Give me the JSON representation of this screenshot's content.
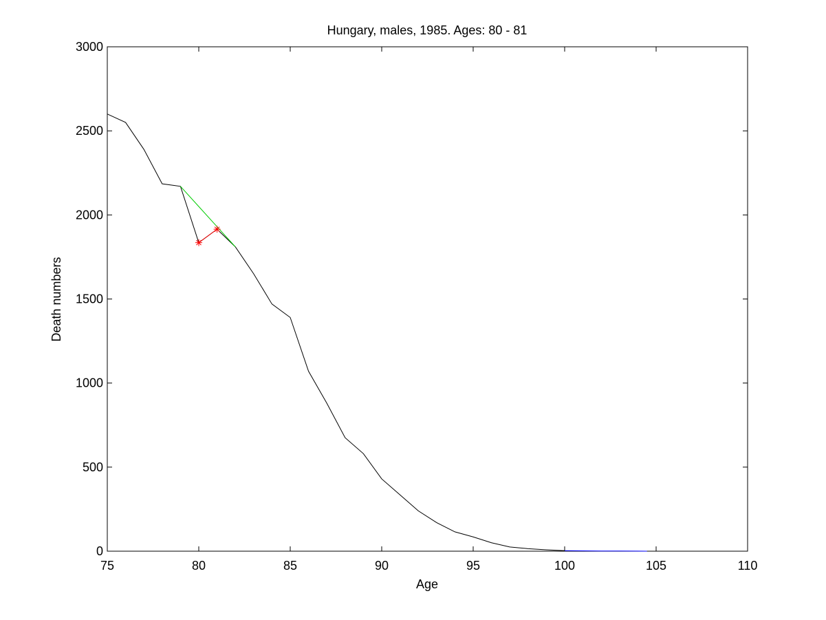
{
  "chart_data": {
    "type": "line",
    "title": "Hungary, males, 1985. Ages: 80 - 81",
    "xlabel": "Age",
    "ylabel": "Death numbers",
    "xlim": [
      75,
      110
    ],
    "ylim": [
      0,
      3000
    ],
    "xticks": [
      75,
      80,
      85,
      90,
      95,
      100,
      105,
      110
    ],
    "yticks": [
      0,
      500,
      1000,
      1500,
      2000,
      2500,
      3000
    ],
    "grid": false,
    "series": [
      {
        "color": "#000000",
        "marker": "none",
        "x": [
          75,
          76,
          77,
          78,
          79,
          80,
          81,
          82,
          83,
          84,
          85,
          86,
          87,
          88,
          89,
          90,
          91,
          92,
          93,
          94,
          95,
          96,
          97,
          98,
          99,
          100
        ],
        "y": [
          2600,
          2550,
          2390,
          2185,
          2170,
          1835,
          1915,
          1810,
          1650,
          1470,
          1390,
          1070,
          880,
          675,
          580,
          430,
          335,
          240,
          170,
          115,
          85,
          50,
          25,
          15,
          8,
          3
        ]
      },
      {
        "color": "#00cc00",
        "marker": "none",
        "x": [
          79,
          80,
          81,
          82
        ],
        "y": [
          2170,
          2050,
          1930,
          1810
        ]
      },
      {
        "color": "#ff0000",
        "marker": "*",
        "x": [
          80,
          81
        ],
        "y": [
          1835,
          1915
        ]
      },
      {
        "color": "#0000ff",
        "marker": "none",
        "x": [
          100,
          101,
          102,
          103,
          104,
          104.5
        ],
        "y": [
          3,
          2,
          1,
          1,
          0.5,
          0
        ]
      }
    ]
  }
}
